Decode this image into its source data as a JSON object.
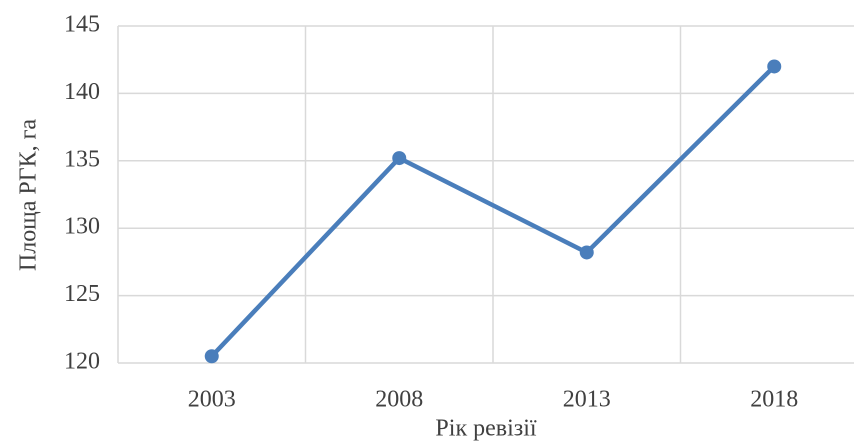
{
  "chart_data": {
    "type": "line",
    "x_label": "Рік ревізії",
    "y_label": "Площа РГК, га",
    "categories": [
      "2003",
      "2008",
      "2013",
      "2018"
    ],
    "series": [
      {
        "name": "Площа РГК, га",
        "color": "#4a7ebb",
        "values": [
          120.5,
          135.2,
          128.2,
          142.0
        ]
      }
    ],
    "ylim": [
      120,
      145
    ],
    "yticks": [
      120,
      125,
      130,
      135,
      140,
      145
    ],
    "grid": true
  }
}
